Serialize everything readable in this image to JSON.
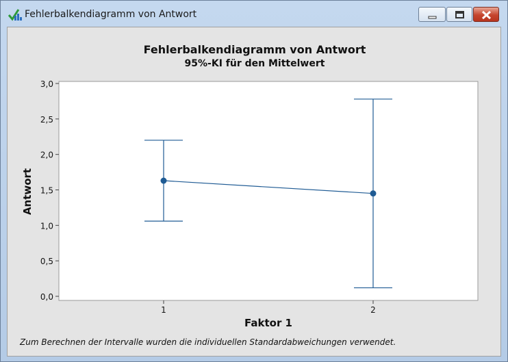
{
  "window": {
    "title": "Fehlerbalkendiagramm von Antwort",
    "icon": "minitab-graph-icon",
    "buttons": [
      "minimize",
      "maximize",
      "close"
    ]
  },
  "chart": {
    "title": "Fehlerbalkendiagramm von Antwort",
    "subtitle": "95%-KI für den Mittelwert",
    "footnote": "Zum Berechnen der Intervalle wurden die individuellen Standardabweichungen verwendet."
  },
  "colors": {
    "series": "#1f5b94",
    "plot_bg": "#ffffff",
    "chart_bg": "#e4e4e4"
  },
  "chart_data": {
    "type": "errorbar",
    "title": "Fehlerbalkendiagramm von Antwort",
    "subtitle": "95%-KI für den Mittelwert",
    "xlabel": "Faktor 1",
    "ylabel": "Antwort",
    "categories": [
      "1",
      "2"
    ],
    "mean": [
      1.63,
      1.45
    ],
    "ci_lower": [
      1.06,
      0.12
    ],
    "ci_upper": [
      2.2,
      2.78
    ],
    "ylim": [
      0,
      3.0
    ],
    "yticks": [
      "0,0",
      "0,5",
      "1,0",
      "1,5",
      "2,0",
      "2,5",
      "3,0"
    ],
    "ytick_values": [
      0,
      0.5,
      1.0,
      1.5,
      2.0,
      2.5,
      3.0
    ],
    "grid": false,
    "connect_means": true
  }
}
